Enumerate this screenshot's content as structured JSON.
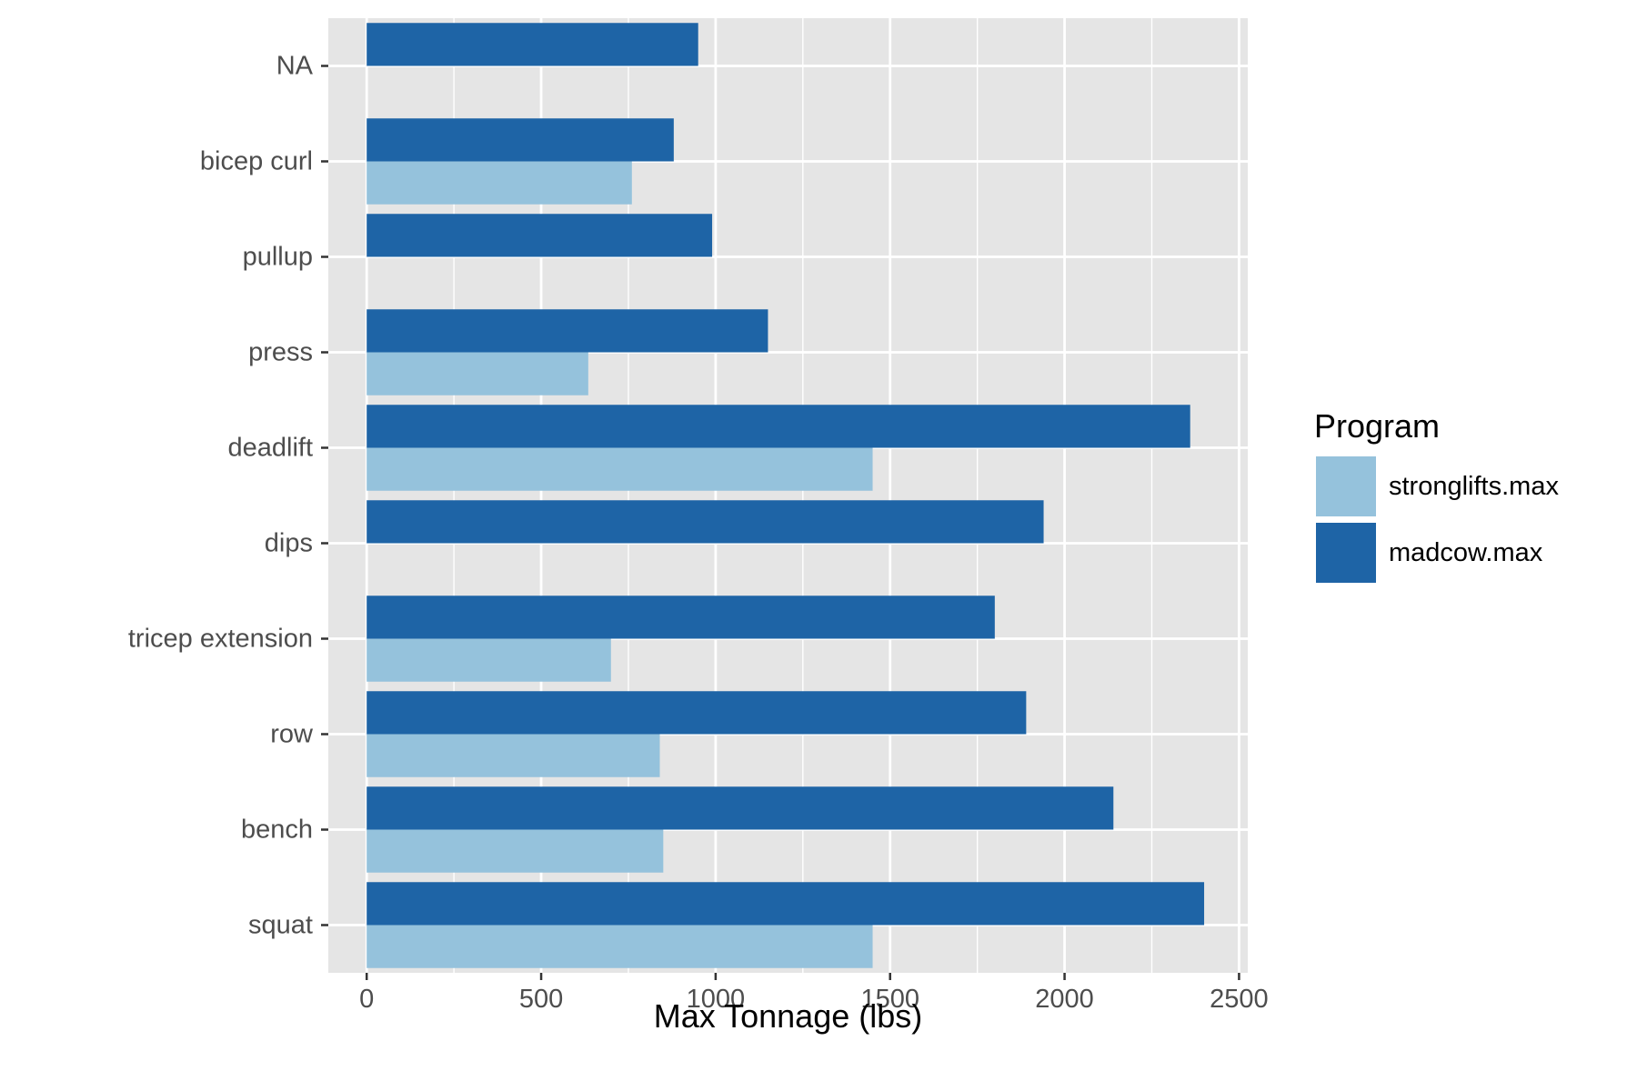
{
  "chart_data": {
    "type": "bar",
    "orientation": "horizontal",
    "categories": [
      "NA",
      "bicep curl",
      "pullup",
      "press",
      "deadlift",
      "dips",
      "tricep extension",
      "row",
      "bench",
      "squat"
    ],
    "series": [
      {
        "name": "stronglifts.max",
        "color": "#95C2DC",
        "values": [
          null,
          760,
          null,
          635,
          1450,
          null,
          700,
          840,
          850,
          1450
        ]
      },
      {
        "name": "madcow.max",
        "color": "#1E64A6",
        "values": [
          950,
          880,
          990,
          1150,
          2360,
          1940,
          1800,
          1890,
          2140,
          2400
        ]
      }
    ],
    "xlabel": "Max Tonnage (lbs)",
    "ylabel": "",
    "xlim": [
      -110,
      2525
    ],
    "xticks": [
      "0",
      "500",
      "1000",
      "1500",
      "2000",
      "2500"
    ],
    "grid": true,
    "panel_color": "#E5E5E5",
    "legend": {
      "title": "Program",
      "position": "right"
    }
  }
}
